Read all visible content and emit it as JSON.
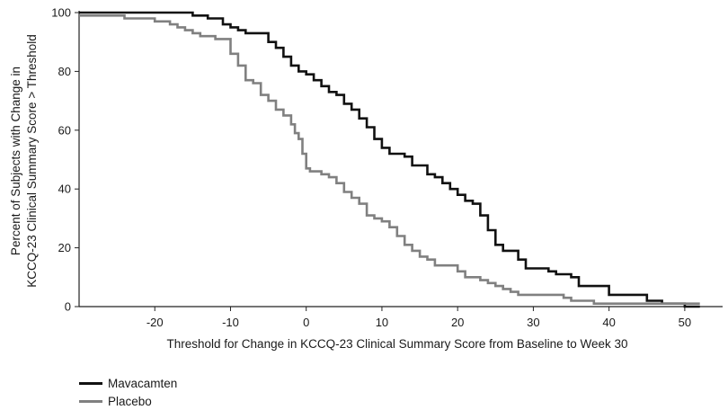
{
  "chart_data": {
    "type": "line",
    "step": true,
    "xlabel": "Threshold for Change in KCCQ-23 Clinical Summary Score from Baseline to Week 30",
    "ylabel_lines": [
      "Percent of Subjects with Change in",
      "KCCQ-23 Clinical Summary Score > Threshold"
    ],
    "xlim": [
      -30,
      55
    ],
    "ylim": [
      0,
      100
    ],
    "xticks": [
      -20,
      -10,
      0,
      10,
      20,
      30,
      40,
      50
    ],
    "yticks": [
      0,
      20,
      40,
      60,
      80,
      100
    ],
    "grid": false,
    "legend_position": "bottom-left",
    "series": [
      {
        "name": "Mavacamten",
        "color": "#111111",
        "x": [
          -30,
          -15,
          -13,
          -11,
          -10,
          -9,
          -8,
          -6,
          -5,
          -4,
          -3,
          -2,
          -1,
          0,
          1,
          2,
          3,
          4,
          5,
          6,
          7,
          8,
          9,
          10,
          11,
          13,
          14,
          16,
          17,
          18,
          19,
          20,
          21,
          22,
          23,
          24,
          25,
          26,
          28,
          29,
          32,
          33,
          35,
          36,
          40,
          43,
          45,
          47,
          50,
          52
        ],
        "y": [
          100,
          99,
          98,
          96,
          95,
          94,
          93,
          93,
          90,
          88,
          85,
          82,
          80,
          79,
          77,
          75,
          73,
          72,
          69,
          67,
          64,
          61,
          57,
          54,
          52,
          51,
          48,
          45,
          44,
          42,
          40,
          38,
          36,
          35,
          31,
          26,
          21,
          19,
          16,
          13,
          12,
          11,
          10,
          7,
          4,
          4,
          2,
          1,
          0,
          0
        ]
      },
      {
        "name": "Placebo",
        "color": "#808080",
        "x": [
          -30,
          -24,
          -20,
          -18,
          -17,
          -16,
          -15,
          -14,
          -12,
          -10,
          -9,
          -8,
          -7,
          -6,
          -5,
          -4,
          -3,
          -2,
          -1.5,
          -1,
          -0.5,
          0,
          0.5,
          2,
          3,
          4,
          5,
          6,
          7,
          8,
          9,
          10,
          11,
          12,
          13,
          14,
          15,
          16,
          17,
          20,
          21,
          23,
          24,
          25,
          26,
          27,
          28,
          34,
          35,
          38,
          52
        ],
        "y": [
          99,
          98,
          97,
          96,
          95,
          94,
          93,
          92,
          91,
          86,
          82,
          77,
          76,
          72,
          70,
          67,
          65,
          62,
          59,
          57,
          52,
          47,
          46,
          45,
          44,
          42,
          39,
          37,
          35,
          31,
          30,
          29,
          27,
          24,
          21,
          19,
          17,
          16,
          14,
          12,
          10,
          9,
          8,
          7,
          6,
          5,
          4,
          3,
          2,
          1,
          1
        ]
      }
    ]
  }
}
